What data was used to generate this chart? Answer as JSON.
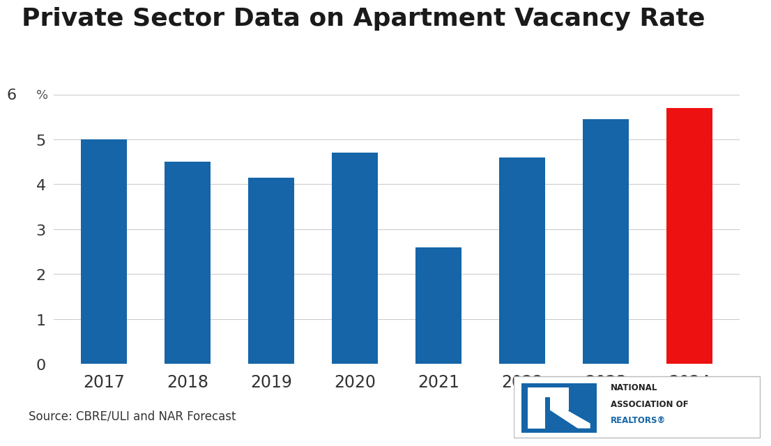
{
  "title": "Private Sector Data on Apartment Vacancy Rate",
  "categories": [
    "2017",
    "2018",
    "2019",
    "2020",
    "2021",
    "2022",
    "2023",
    "2024"
  ],
  "values": [
    5.0,
    4.5,
    4.15,
    4.7,
    2.6,
    4.6,
    5.45,
    5.7
  ],
  "bar_colors": [
    "#1565a8",
    "#1565a8",
    "#1565a8",
    "#1565a8",
    "#1565a8",
    "#1565a8",
    "#1565a8",
    "#ee1111"
  ],
  "ylim": [
    0,
    6.5
  ],
  "yticks": [
    0,
    1,
    2,
    3,
    4,
    5,
    6
  ],
  "source_text": "Source: CBRE/ULI and NAR Forecast",
  "background_color": "#ffffff",
  "title_color": "#1a1a1a",
  "title_fontsize": 26,
  "bar_width": 0.55,
  "grid_color": "#cccccc",
  "nar_logo_box_color": "#1565a8",
  "nar_logo_text_color_black": "#222222",
  "nar_logo_text_color_blue": "#1565a8",
  "tick_fontsize": 16,
  "xtick_fontsize": 17,
  "source_fontsize": 12
}
